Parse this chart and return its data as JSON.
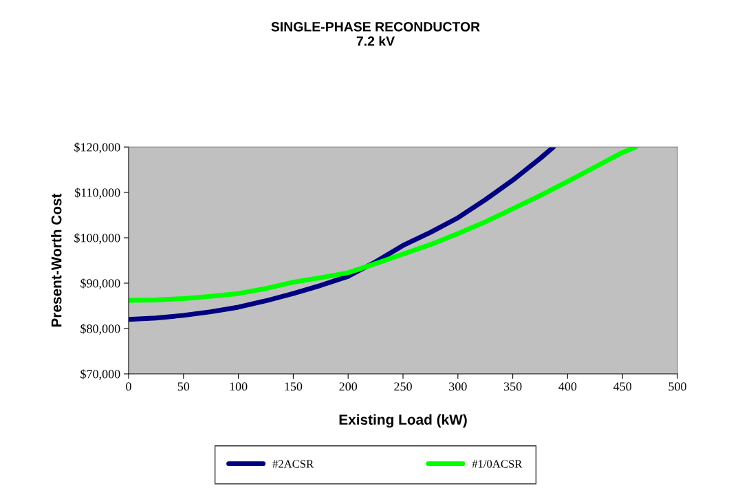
{
  "chart_data": {
    "type": "line",
    "title": "SINGLE-PHASE RECONDUCTOR\n7.2 kV",
    "xlabel": "Existing Load (kW)",
    "ylabel": "Present-Worth Cost",
    "series": [
      {
        "name": "#2ACSR",
        "color": "#000080",
        "x": [
          0,
          25,
          50,
          75,
          100,
          125,
          150,
          175,
          200,
          225,
          250,
          275,
          300,
          325,
          350,
          375,
          387
        ],
        "values": [
          82000,
          82300,
          82900,
          83700,
          84700,
          86100,
          87700,
          89500,
          91500,
          94700,
          98300,
          101200,
          104400,
          108400,
          112700,
          117500,
          120000
        ]
      },
      {
        "name": "#1/0ACSR",
        "color": "#00ff00",
        "x": [
          0,
          25,
          50,
          75,
          100,
          125,
          150,
          175,
          200,
          225,
          250,
          275,
          300,
          325,
          350,
          375,
          400,
          425,
          450,
          462
        ],
        "values": [
          86200,
          86300,
          86600,
          87100,
          87700,
          88800,
          90200,
          91200,
          92300,
          94300,
          96400,
          98500,
          100900,
          103500,
          106400,
          109300,
          112400,
          115600,
          118800,
          120000
        ]
      }
    ],
    "xlim": [
      0,
      500
    ],
    "xticks": [
      0,
      50,
      100,
      150,
      200,
      250,
      300,
      350,
      400,
      450,
      500
    ],
    "ylim": [
      70000,
      120000
    ],
    "yticks": [
      {
        "value": 70000,
        "label": "$70,000"
      },
      {
        "value": 80000,
        "label": "$80,000"
      },
      {
        "value": 90000,
        "label": "$90,000"
      },
      {
        "value": 100000,
        "label": "$100,000"
      },
      {
        "value": 110000,
        "label": "$110,000"
      },
      {
        "value": 120000,
        "label": "$120,000"
      }
    ],
    "grid": false,
    "legend": "bottom",
    "marker": "none",
    "line_style": "solid"
  }
}
